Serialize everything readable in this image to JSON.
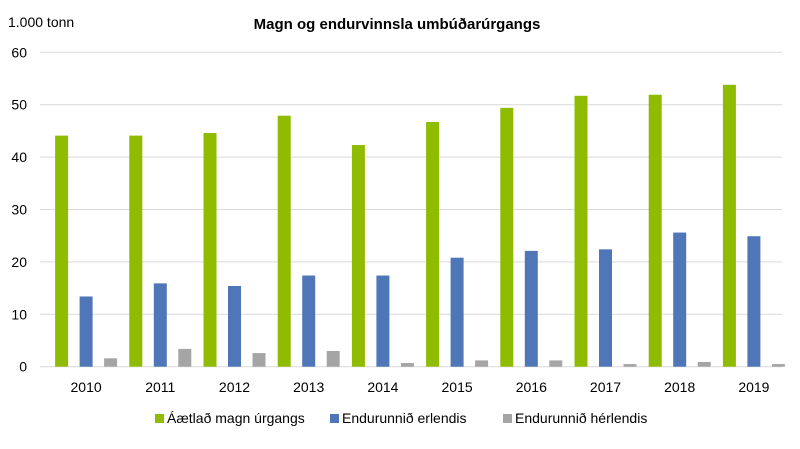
{
  "chart_data": {
    "type": "bar",
    "title": "Magn og endurvinnsla umbúðarúrgangs",
    "ylabel": "1.000 tonn",
    "xlabel": "",
    "ylim": [
      0,
      60
    ],
    "yticks": [
      0,
      10,
      20,
      30,
      40,
      50,
      60
    ],
    "grid": true,
    "legend_position": "bottom",
    "categories": [
      "2010",
      "2011",
      "2012",
      "2013",
      "2014",
      "2015",
      "2016",
      "2017",
      "2018",
      "2019"
    ],
    "series": [
      {
        "name": "Áætlað magn úrgangs",
        "color": "#8fbc00",
        "values": [
          44.1,
          44.1,
          44.6,
          47.9,
          42.3,
          46.7,
          49.4,
          51.7,
          51.9,
          53.8
        ]
      },
      {
        "name": "Endurunnið erlendis",
        "color": "#4f77b8",
        "values": [
          13.4,
          15.9,
          15.4,
          17.4,
          17.4,
          20.8,
          22.1,
          22.4,
          25.6,
          24.9
        ]
      },
      {
        "name": "Endurunnið hérlendis",
        "color": "#a5a5a5",
        "values": [
          1.6,
          3.4,
          2.6,
          3.0,
          0.7,
          1.2,
          1.2,
          0.5,
          0.9,
          0.5
        ]
      }
    ]
  }
}
